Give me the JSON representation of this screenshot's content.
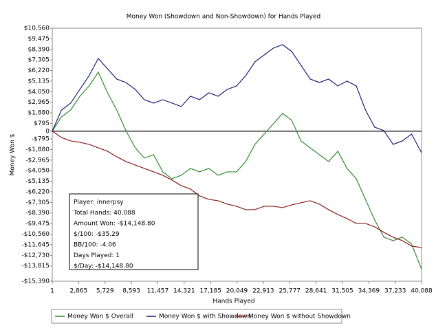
{
  "chart_data": {
    "type": "line",
    "title": "Money Won (Showdown and Non-Showdown) for Hands Played",
    "x_label": "Hands Played",
    "y_label": "Money Won $",
    "x": [
      1,
      1000,
      2000,
      3000,
      4000,
      5000,
      6000,
      7000,
      8000,
      9000,
      10000,
      11000,
      12000,
      13000,
      14000,
      15000,
      16000,
      17000,
      18000,
      19000,
      20000,
      21000,
      22000,
      23000,
      24000,
      25000,
      26000,
      27000,
      28000,
      29000,
      30000,
      31000,
      32000,
      33000,
      34000,
      35000,
      36000,
      37000,
      38000,
      39000,
      40088
    ],
    "series": [
      {
        "name": "Money Won $ Overall",
        "color": "#2e8b2e",
        "values": [
          0,
          1466,
          2170,
          3580,
          4638,
          6048,
          3933,
          2170,
          55,
          -1707,
          -2765,
          -2412,
          -4175,
          -4880,
          -4527,
          -3822,
          -4175,
          -3822,
          -4527,
          -4175,
          -4175,
          -3117,
          -1355,
          -297,
          760,
          1818,
          1113,
          -1002,
          -1707,
          -2412,
          -3117,
          -2060,
          -3822,
          -4880,
          -6995,
          -9110,
          -10872,
          -11225,
          -10872,
          -11577,
          -14149
        ]
      },
      {
        "name": "Money Won $ with Showdown",
        "color": "#1c1c7a",
        "values": [
          0,
          2170,
          2876,
          4286,
          5696,
          7458,
          6401,
          5343,
          4990,
          4286,
          3228,
          2876,
          3228,
          2876,
          2523,
          3580,
          3228,
          3933,
          3580,
          4286,
          4638,
          5696,
          7106,
          7811,
          8516,
          8869,
          8164,
          6753,
          5343,
          4990,
          5343,
          4638,
          5131,
          4638,
          2170,
          408,
          55,
          -1355,
          -1002,
          -297,
          -2200
        ]
      },
      {
        "name": "Money Won $ without Showdown",
        "color": "#8b1a1a",
        "values": [
          0,
          -650,
          -1002,
          -1143,
          -1355,
          -1707,
          -2060,
          -2624,
          -3117,
          -3470,
          -3822,
          -4175,
          -4527,
          -5021,
          -5584,
          -5937,
          -6642,
          -6995,
          -7136,
          -7488,
          -7700,
          -8052,
          -8052,
          -7700,
          -7700,
          -7840,
          -7558,
          -7347,
          -7136,
          -7488,
          -8052,
          -8545,
          -8968,
          -9462,
          -9462,
          -9815,
          -10379,
          -10872,
          -11225,
          -11789,
          -11930
        ]
      }
    ],
    "xlim": [
      1,
      40088
    ],
    "xticks": [
      1,
      {
        "value": 2865,
        "label": "2,865"
      },
      {
        "value": 5729,
        "label": "5,729"
      },
      {
        "value": 8593,
        "label": "8,593"
      },
      {
        "value": 11457,
        "label": "11,457"
      },
      {
        "value": 14321,
        "label": "14,321"
      },
      {
        "value": 17185,
        "label": "17,185"
      },
      {
        "value": 20049,
        "label": "20,049"
      },
      {
        "value": 22913,
        "label": "22,913"
      },
      {
        "value": 25777,
        "label": "25,777"
      },
      {
        "value": 28641,
        "label": "28,641"
      },
      {
        "value": 31505,
        "label": "31,505"
      },
      {
        "value": 34369,
        "label": "34,369"
      },
      {
        "value": 37233,
        "label": "37,233"
      },
      {
        "value": 40088,
        "label": "40,088"
      }
    ],
    "ylim": [
      -15390,
      10560
    ],
    "yticks": [
      {
        "value": 10560,
        "label": "$10,560"
      },
      {
        "value": 9475,
        "label": "$9,475"
      },
      {
        "value": 8390,
        "label": "$8,390"
      },
      {
        "value": 7305,
        "label": "$7,305"
      },
      {
        "value": 6220,
        "label": "$6,220"
      },
      {
        "value": 5135,
        "label": "$5,135"
      },
      {
        "value": 4050,
        "label": "$4,050"
      },
      {
        "value": 2965,
        "label": "$2,965"
      },
      {
        "value": 1880,
        "label": "$1,880"
      },
      {
        "value": 795,
        "label": "$795"
      },
      0,
      {
        "value": -795,
        "label": "-$795"
      },
      {
        "value": -1880,
        "label": "-$1,880"
      },
      {
        "value": -2965,
        "label": "-$2,965"
      },
      {
        "value": -4050,
        "label": "-$4,050"
      },
      {
        "value": -5135,
        "label": "-$5,135"
      },
      {
        "value": -6220,
        "label": "-$6,220"
      },
      {
        "value": -7305,
        "label": "-$7,305"
      },
      {
        "value": -8390,
        "label": "-$8,390"
      },
      {
        "value": -9475,
        "label": "-$9,475"
      },
      {
        "value": -10560,
        "label": "-$10,560"
      },
      {
        "value": -11645,
        "label": "-$11,645"
      },
      {
        "value": -12730,
        "label": "-$12,730"
      },
      {
        "value": -13815,
        "label": "-$13,815"
      },
      {
        "value": -15390,
        "label": "-$15,390"
      }
    ],
    "info_box": [
      "Player: innerpsy",
      "Total Hands: 40,088",
      "Amount Won: -$14,148.80",
      "$/100: -$35.29",
      "BB/100: -4.06",
      "Days Played: 1",
      "$/Day: -$14,148.80"
    ]
  }
}
